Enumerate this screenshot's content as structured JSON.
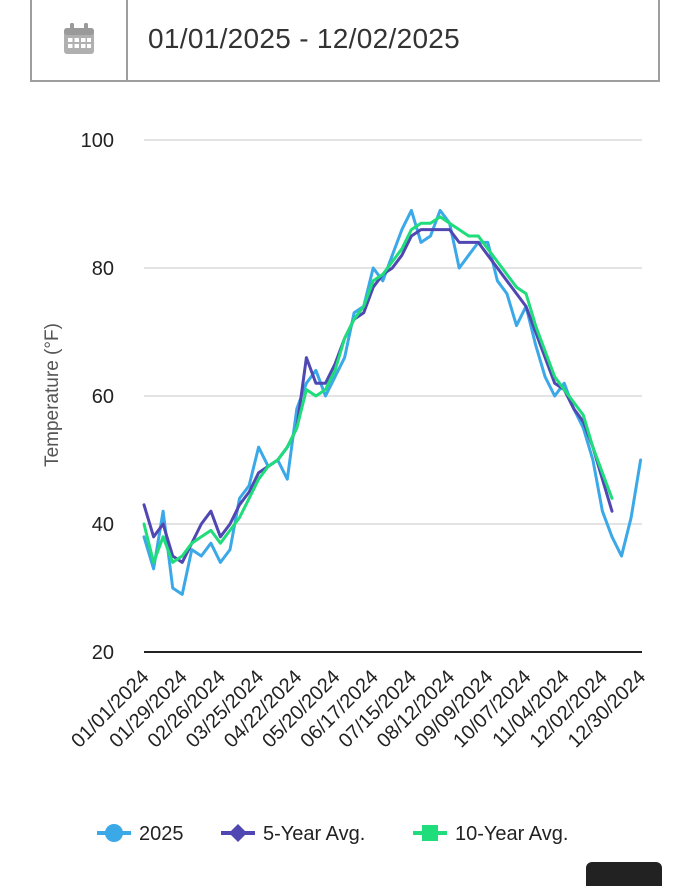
{
  "date_range": {
    "value": "01/01/2025 - 12/02/2025",
    "icon": "calendar-icon"
  },
  "chart_data": {
    "type": "line",
    "ylabel": "Temperature (°F)",
    "ylim": [
      20,
      100
    ],
    "yticks": [
      20,
      40,
      60,
      80,
      100
    ],
    "xlim": [
      "01/01/2024",
      "12/31/2024"
    ],
    "xtick_labels": [
      "01/01/2024",
      "01/29/2024",
      "02/26/2024",
      "03/25/2024",
      "04/22/2024",
      "05/20/2024",
      "06/17/2024",
      "07/15/2024",
      "08/12/2024",
      "09/09/2024",
      "10/07/2024",
      "11/04/2024",
      "12/02/2024",
      "12/30/2024"
    ],
    "grid": true,
    "legend_position": "bottom",
    "x": [
      "01/01/2024",
      "01/08/2024",
      "01/15/2024",
      "01/22/2024",
      "01/29/2024",
      "02/05/2024",
      "02/12/2024",
      "02/19/2024",
      "02/26/2024",
      "03/04/2024",
      "03/11/2024",
      "03/18/2024",
      "03/25/2024",
      "04/01/2024",
      "04/08/2024",
      "04/15/2024",
      "04/22/2024",
      "04/29/2024",
      "05/06/2024",
      "05/13/2024",
      "05/20/2024",
      "05/27/2024",
      "06/03/2024",
      "06/10/2024",
      "06/17/2024",
      "06/24/2024",
      "07/01/2024",
      "07/08/2024",
      "07/15/2024",
      "07/22/2024",
      "07/29/2024",
      "08/05/2024",
      "08/12/2024",
      "08/19/2024",
      "08/26/2024",
      "09/02/2024",
      "09/09/2024",
      "09/16/2024",
      "09/23/2024",
      "09/30/2024",
      "10/07/2024",
      "10/14/2024",
      "10/21/2024",
      "10/28/2024",
      "11/04/2024",
      "11/11/2024",
      "11/18/2024",
      "11/25/2024",
      "12/02/2024",
      "12/09/2024",
      "12/16/2024",
      "12/23/2024",
      "12/30/2024"
    ],
    "series": [
      {
        "name": "2025",
        "color": "#3ba8e8",
        "values": [
          38,
          33,
          42,
          30,
          29,
          36,
          35,
          37,
          34,
          36,
          44,
          46,
          52,
          49,
          50,
          47,
          58,
          62,
          64,
          60,
          63,
          66,
          73,
          74,
          80,
          78,
          82,
          86,
          89,
          84,
          85,
          89,
          87,
          80,
          82,
          84,
          84,
          78,
          76,
          71,
          74,
          68,
          63,
          60,
          62,
          58,
          55,
          50,
          42,
          38,
          35,
          41,
          50
        ]
      },
      {
        "name": "5-Year Avg.",
        "color": "#5047b2",
        "values": [
          43,
          38,
          40,
          35,
          34,
          37,
          40,
          42,
          38,
          40,
          43,
          45,
          48,
          49,
          50,
          52,
          55,
          66,
          62,
          62,
          65,
          69,
          72,
          73,
          77,
          79,
          80,
          82,
          85,
          86,
          86,
          86,
          86,
          84,
          84,
          84,
          82,
          80,
          78,
          76,
          74,
          70,
          66,
          62,
          61,
          58,
          56,
          52,
          47,
          42,
          null,
          null,
          null
        ]
      },
      {
        "name": "10-Year Avg.",
        "color": "#1edd7a",
        "values": [
          40,
          34,
          38,
          34,
          35,
          37,
          38,
          39,
          37,
          39,
          41,
          44,
          47,
          49,
          50,
          52,
          55,
          61,
          60,
          61,
          64,
          69,
          72,
          74,
          78,
          79,
          81,
          83,
          86,
          87,
          87,
          88,
          87,
          86,
          85,
          85,
          83,
          81,
          79,
          77,
          76,
          71,
          67,
          63,
          61,
          59,
          57,
          52,
          48,
          44,
          null,
          null,
          null
        ]
      }
    ]
  }
}
